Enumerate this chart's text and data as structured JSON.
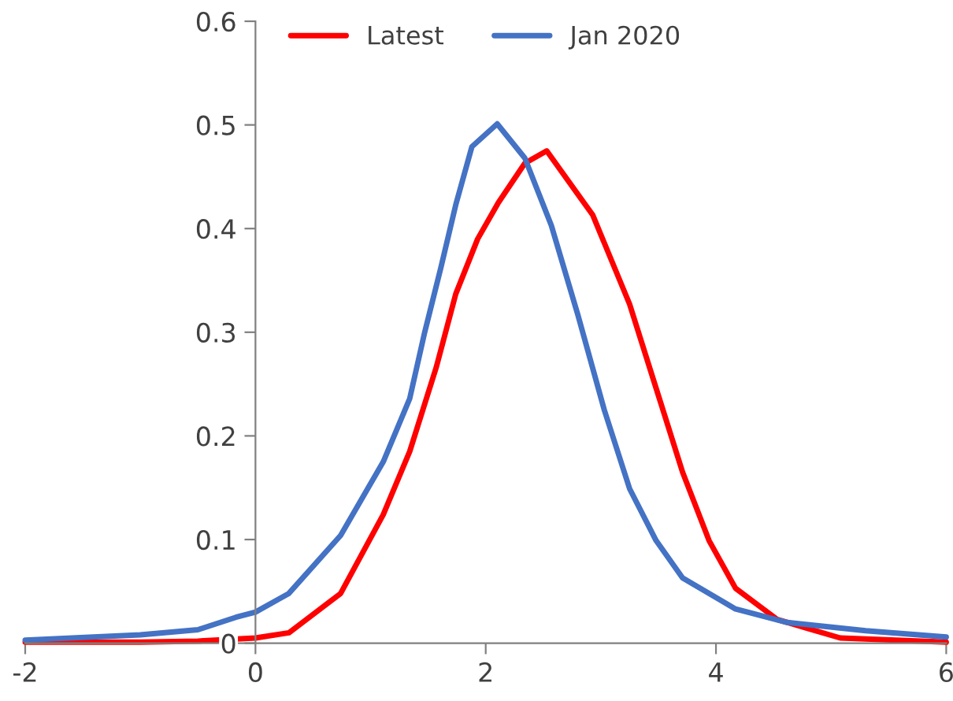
{
  "chart_data": {
    "type": "line",
    "xlim": [
      -2,
      6
    ],
    "ylim": [
      0,
      0.6
    ],
    "xticks": [
      -2,
      0,
      2,
      4,
      6
    ],
    "yticks": [
      0,
      0.1,
      0.2,
      0.3,
      0.4,
      0.5,
      0.6
    ],
    "legend": "top",
    "grid": false,
    "line_style": "solid",
    "series": [
      {
        "name": "Latest",
        "color": "#ff0000",
        "x": [
          -2,
          -1,
          -0.5,
          0,
          0.29,
          0.74,
          1.11,
          1.34,
          1.57,
          1.74,
          1.93,
          2.11,
          2.34,
          2.53,
          2.93,
          3.25,
          3.48,
          3.71,
          3.94,
          4.17,
          4.53,
          5.08,
          6
        ],
        "values": [
          0.001,
          0.001,
          0.002,
          0.005,
          0.01,
          0.048,
          0.124,
          0.185,
          0.266,
          0.337,
          0.39,
          0.425,
          0.463,
          0.475,
          0.413,
          0.327,
          0.246,
          0.165,
          0.099,
          0.053,
          0.023,
          0.005,
          0.001
        ]
      },
      {
        "name": "Jan 2020",
        "color": "#4472c4",
        "x": [
          -2,
          -1,
          -0.5,
          -0.17,
          0,
          0.29,
          0.74,
          1.11,
          1.34,
          1.47,
          1.61,
          1.74,
          1.88,
          2.1,
          2.34,
          2.57,
          2.8,
          3.03,
          3.25,
          3.48,
          3.71,
          4.17,
          4.62,
          5.3,
          6
        ],
        "values": [
          0.003,
          0.008,
          0.013,
          0.025,
          0.03,
          0.048,
          0.104,
          0.175,
          0.236,
          0.3,
          0.362,
          0.423,
          0.479,
          0.501,
          0.468,
          0.403,
          0.317,
          0.225,
          0.149,
          0.099,
          0.063,
          0.033,
          0.02,
          0.012,
          0.006
        ]
      }
    ]
  }
}
